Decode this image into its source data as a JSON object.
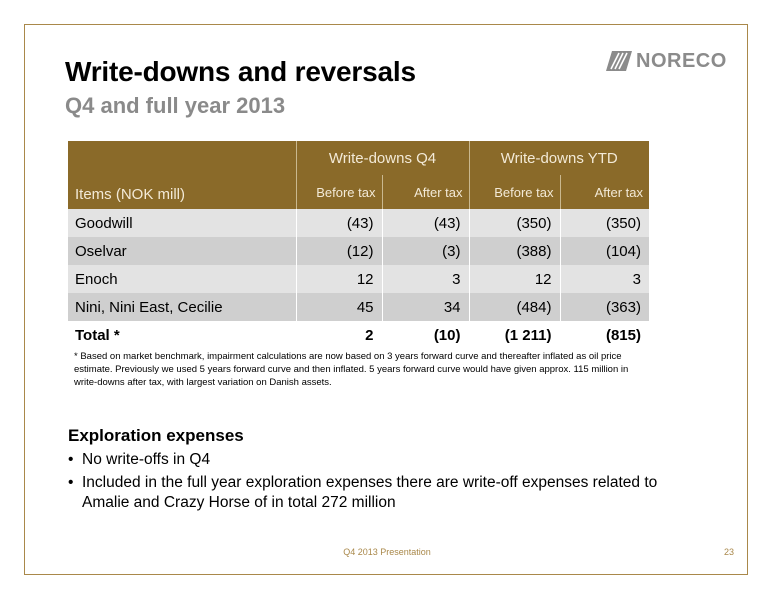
{
  "slide": {
    "title": "Write-downs and reversals",
    "subtitle": "Q4 and full year 2013",
    "logo_text": "NORECO",
    "accent_color": "#8a6a29",
    "border_color": "#a9884a",
    "footer": "Q4 2013 Presentation",
    "page_number": "23"
  },
  "table": {
    "items_header": "Items  (NOK mill)",
    "group_headers": [
      "Write-downs Q4",
      "Write-downs YTD"
    ],
    "sub_headers": [
      "Before tax",
      "After tax",
      "Before tax",
      "After tax"
    ],
    "rows": [
      {
        "label": "Goodwill",
        "values": [
          "(43)",
          "(43)",
          "(350)",
          "(350)"
        ]
      },
      {
        "label": "Oselvar",
        "values": [
          "(12)",
          "(3)",
          "(388)",
          "(104)"
        ]
      },
      {
        "label": "Enoch",
        "values": [
          "12",
          "3",
          "12",
          "3"
        ]
      },
      {
        "label": "Nini, Nini East, Cecilie",
        "values": [
          "45",
          "34",
          "(484)",
          "(363)"
        ]
      }
    ],
    "total": {
      "label": "Total *",
      "values": [
        "2",
        "(10)",
        "(1 211)",
        "(815)"
      ]
    }
  },
  "footnote": "* Based on market benchmark, impairment calculations are now based on 3 years forward curve and thereafter inflated as oil price estimate. Previously we used 5 years forward curve and then inflated. 5 years forward curve would have given approx. 115 million in write-downs after tax, with largest variation on Danish assets.",
  "exploration": {
    "heading": "Exploration expenses",
    "bullets": [
      "No write-offs in Q4",
      "Included in the full year exploration expenses there are write-off expenses related to Amalie and Crazy Horse of in total 272 million"
    ]
  }
}
